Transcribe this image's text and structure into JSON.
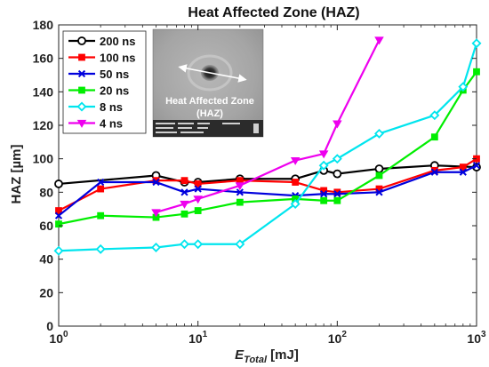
{
  "chart_data": {
    "type": "line",
    "title": "Heat Affected Zone (HAZ)",
    "xlabel_main": "E",
    "xlabel_sub": "Total",
    "xlabel_unit": " [mJ]",
    "ylabel": "HAZ [µm]",
    "xscale": "log",
    "xlim": [
      1,
      1000
    ],
    "ylim": [
      0,
      180
    ],
    "xticks": [
      1,
      10,
      100,
      1000
    ],
    "xtick_labels": [
      {
        "base": "10",
        "exp": "0"
      },
      {
        "base": "10",
        "exp": "1"
      },
      {
        "base": "10",
        "exp": "2"
      },
      {
        "base": "10",
        "exp": "3"
      }
    ],
    "yticks": [
      0,
      20,
      40,
      60,
      80,
      100,
      120,
      140,
      160,
      180
    ],
    "grid": false,
    "legend_position": "top-left",
    "series": [
      {
        "name": "200 ns",
        "color": "#000000",
        "marker": "circle",
        "x": [
          1,
          5,
          8,
          10,
          20,
          50,
          80,
          100,
          200,
          500,
          1000
        ],
        "y": [
          85,
          90,
          86,
          86,
          88,
          88,
          93,
          91,
          94,
          96,
          95
        ]
      },
      {
        "name": "100 ns",
        "color": "#ff0000",
        "marker": "square",
        "x": [
          1,
          2,
          5,
          8,
          10,
          20,
          50,
          80,
          100,
          200,
          500,
          800,
          1000
        ],
        "y": [
          69,
          82,
          87,
          87,
          85,
          87,
          86,
          81,
          80,
          82,
          93,
          95,
          100
        ]
      },
      {
        "name": "50 ns",
        "color": "#0000dd",
        "marker": "x",
        "x": [
          1,
          2,
          5,
          8,
          10,
          20,
          50,
          80,
          100,
          200,
          500,
          800,
          1000
        ],
        "y": [
          66,
          86,
          86,
          80,
          82,
          80,
          78,
          79,
          79,
          80,
          92,
          92,
          96
        ]
      },
      {
        "name": "20 ns",
        "color": "#00ee00",
        "marker": "square",
        "x": [
          1,
          2,
          5,
          8,
          10,
          20,
          50,
          80,
          100,
          200,
          500,
          800,
          1000
        ],
        "y": [
          61,
          66,
          65,
          67,
          69,
          74,
          76,
          75,
          75,
          90,
          113,
          141,
          152
        ]
      },
      {
        "name": "8 ns",
        "color": "#00e5ee",
        "marker": "diamond",
        "x": [
          1,
          2,
          5,
          8,
          10,
          20,
          50,
          80,
          100,
          200,
          500,
          800,
          1000
        ],
        "y": [
          45,
          46,
          47,
          49,
          49,
          49,
          73,
          96,
          100,
          115,
          126,
          143,
          169
        ]
      },
      {
        "name": "4 ns",
        "color": "#ee00ee",
        "marker": "triangle-down",
        "x": [
          5,
          8,
          10,
          20,
          50,
          80,
          100,
          200
        ],
        "y": [
          68,
          73,
          76,
          84,
          99,
          103,
          121,
          171
        ]
      }
    ]
  },
  "inset": {
    "caption_line1": "Heat Affected Zone",
    "caption_line2": "(HAZ)"
  }
}
